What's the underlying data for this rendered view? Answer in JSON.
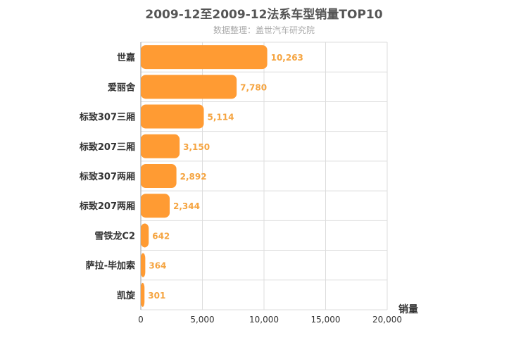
{
  "chart_data": {
    "type": "bar",
    "orientation": "horizontal",
    "title": "2009-12至2009-12法系车型销量TOP10",
    "subtitle": "数据整理：盖世汽车研究院",
    "categories": [
      "世嘉",
      "爱丽舍",
      "标致307三厢",
      "标致207三厢",
      "标致307两厢",
      "标致207两厢",
      "雪铁龙C2",
      "萨拉-毕加索",
      "凯旋"
    ],
    "values": [
      10263,
      7780,
      5114,
      3150,
      2892,
      2344,
      642,
      364,
      301
    ],
    "value_labels": [
      "10,263",
      "7,780",
      "5,114",
      "3,150",
      "2,892",
      "2,344",
      "642",
      "364",
      "301"
    ],
    "xlabel": "销量",
    "ylabel": "",
    "xlim": [
      0,
      20000
    ],
    "xticks": [
      0,
      5000,
      10000,
      15000,
      20000
    ],
    "xtick_labels": [
      "0",
      "5,000",
      "10,000",
      "15,000",
      "20,000"
    ],
    "grid": true,
    "bar_color": "#ff9b33",
    "value_label_color": "#f5a440"
  }
}
